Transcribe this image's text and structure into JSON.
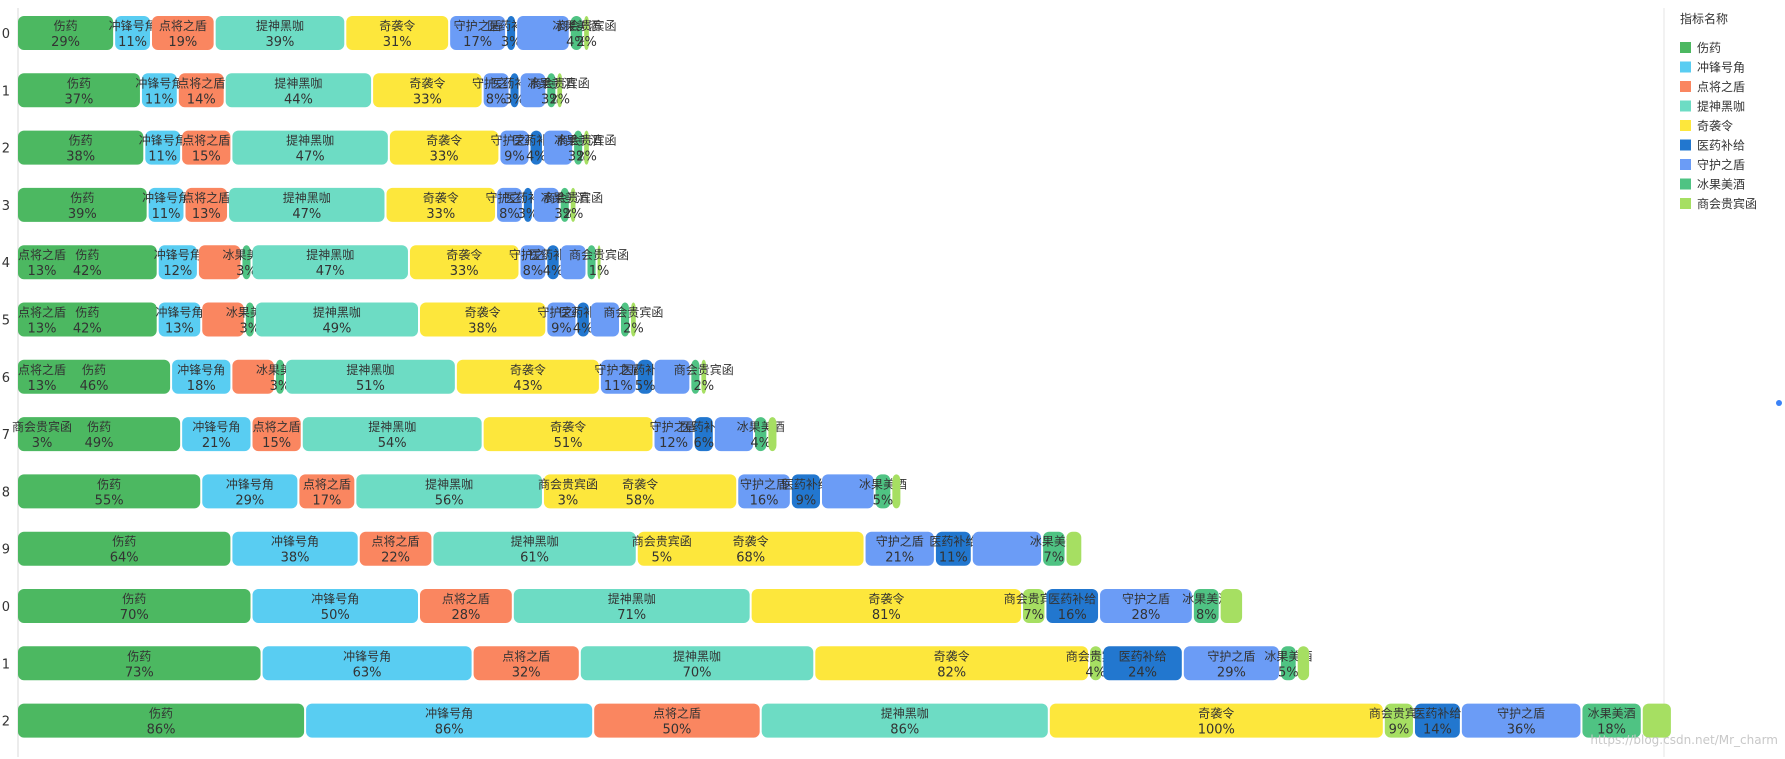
{
  "chart_data": {
    "type": "bar",
    "orientation": "horizontal",
    "stacked": true,
    "title": "",
    "legend": {
      "title": "指标名称",
      "position": "right",
      "items": [
        {
          "name": "伤药",
          "color": "#4cb861"
        },
        {
          "name": "冲锋号角",
          "color": "#59cdf2"
        },
        {
          "name": "点将之盾",
          "color": "#fa8660"
        },
        {
          "name": "提神黑咖",
          "color": "#6ddcc4"
        },
        {
          "name": "奇袭令",
          "color": "#fde73c"
        },
        {
          "name": "医药补给",
          "color": "#2277cf"
        },
        {
          "name": "守护之盾",
          "color": "#6b9cf6"
        },
        {
          "name": "冰果美酒",
          "color": "#4fc383"
        },
        {
          "name": "商会贵宾函",
          "color": "#a6df62"
        }
      ]
    },
    "rows": [
      {
        "label": "0",
        "segments": [
          {
            "series": "伤药",
            "value": 29,
            "label": "29%"
          },
          {
            "series": "冲锋号角",
            "value": 11,
            "label": "11%"
          },
          {
            "series": "点将之盾",
            "value": 19,
            "label": "19%"
          },
          {
            "series": "提神黑咖",
            "value": 39,
            "label": "39%"
          },
          {
            "series": "奇袭令",
            "value": 31,
            "label": "31%"
          },
          {
            "series": "守护之盾",
            "value": 17,
            "label": "17%"
          },
          {
            "series": "医药补给",
            "value": 3,
            "label": "3%"
          },
          {
            "series": "守护之盾",
            "value": 16,
            "label": ""
          },
          {
            "series": "冰果美酒",
            "value": 4,
            "label": "4%"
          },
          {
            "series": "商会贵宾函",
            "value": 2,
            "label": "2%"
          }
        ]
      },
      {
        "label": "1",
        "segments": [
          {
            "series": "伤药",
            "value": 37,
            "label": "37%"
          },
          {
            "series": "冲锋号角",
            "value": 11,
            "label": "11%"
          },
          {
            "series": "点将之盾",
            "value": 14,
            "label": "14%"
          },
          {
            "series": "提神黑咖",
            "value": 44,
            "label": "44%"
          },
          {
            "series": "奇袭令",
            "value": 33,
            "label": "33%"
          },
          {
            "series": "守护之盾",
            "value": 8,
            "label": "8%"
          },
          {
            "series": "医药补给",
            "value": 3,
            "label": "3%"
          },
          {
            "series": "守护之盾",
            "value": 8,
            "label": ""
          },
          {
            "series": "冰果美酒",
            "value": 3,
            "label": "3%"
          },
          {
            "series": "商会贵宾函",
            "value": 2,
            "label": "2%"
          }
        ]
      },
      {
        "label": "2",
        "segments": [
          {
            "series": "伤药",
            "value": 38,
            "label": "38%"
          },
          {
            "series": "冲锋号角",
            "value": 11,
            "label": "11%"
          },
          {
            "series": "点将之盾",
            "value": 15,
            "label": "15%"
          },
          {
            "series": "提神黑咖",
            "value": 47,
            "label": "47%"
          },
          {
            "series": "奇袭令",
            "value": 33,
            "label": "33%"
          },
          {
            "series": "守护之盾",
            "value": 9,
            "label": "9%"
          },
          {
            "series": "医药补给",
            "value": 4,
            "label": "4%"
          },
          {
            "series": "守护之盾",
            "value": 9,
            "label": ""
          },
          {
            "series": "冰果美酒",
            "value": 3,
            "label": "3%"
          },
          {
            "series": "商会贵宾函",
            "value": 2,
            "label": "2%"
          }
        ]
      },
      {
        "label": "3",
        "segments": [
          {
            "series": "伤药",
            "value": 39,
            "label": "39%"
          },
          {
            "series": "冲锋号角",
            "value": 11,
            "label": "11%"
          },
          {
            "series": "点将之盾",
            "value": 13,
            "label": "13%"
          },
          {
            "series": "提神黑咖",
            "value": 47,
            "label": "47%"
          },
          {
            "series": "奇袭令",
            "value": 33,
            "label": "33%"
          },
          {
            "series": "守护之盾",
            "value": 8,
            "label": "8%"
          },
          {
            "series": "医药补给",
            "value": 3,
            "label": "3%"
          },
          {
            "series": "守护之盾",
            "value": 8,
            "label": ""
          },
          {
            "series": "冰果美酒",
            "value": 3,
            "label": "3%"
          },
          {
            "series": "商会贵宾函",
            "value": 2,
            "label": "2%"
          }
        ]
      },
      {
        "label": "4",
        "segments": [
          {
            "series": "伤药",
            "value": 42,
            "label": "42%",
            "extra": "点将之盾",
            "extraLabel": "13%"
          },
          {
            "series": "冲锋号角",
            "value": 12,
            "label": "12%"
          },
          {
            "series": "点将之盾",
            "value": 13,
            "label": ""
          },
          {
            "series": "冰果美酒",
            "value": 3,
            "label": "3%"
          },
          {
            "series": "提神黑咖",
            "value": 47,
            "label": "47%"
          },
          {
            "series": "奇袭令",
            "value": 33,
            "label": "33%"
          },
          {
            "series": "守护之盾",
            "value": 8,
            "label": "8%"
          },
          {
            "series": "医药补给",
            "value": 4,
            "label": "4%"
          },
          {
            "series": "守护之盾",
            "value": 8,
            "label": ""
          },
          {
            "series": "冰果美酒",
            "value": 3,
            "label": ""
          },
          {
            "series": "商会贵宾函",
            "value": 1,
            "label": "1%"
          }
        ]
      },
      {
        "label": "5",
        "segments": [
          {
            "series": "伤药",
            "value": 42,
            "label": "42%",
            "extra": "点将之盾",
            "extraLabel": "13%"
          },
          {
            "series": "冲锋号角",
            "value": 13,
            "label": "13%"
          },
          {
            "series": "点将之盾",
            "value": 13,
            "label": ""
          },
          {
            "series": "冰果美酒",
            "value": 3,
            "label": "3%"
          },
          {
            "series": "提神黑咖",
            "value": 49,
            "label": "49%"
          },
          {
            "series": "奇袭令",
            "value": 38,
            "label": "38%"
          },
          {
            "series": "守护之盾",
            "value": 9,
            "label": "9%"
          },
          {
            "series": "医药补给",
            "value": 4,
            "label": "4%"
          },
          {
            "series": "守护之盾",
            "value": 9,
            "label": ""
          },
          {
            "series": "冰果美酒",
            "value": 3,
            "label": ""
          },
          {
            "series": "商会贵宾函",
            "value": 2,
            "label": "2%"
          }
        ]
      },
      {
        "label": "6",
        "segments": [
          {
            "series": "伤药",
            "value": 46,
            "label": "46%",
            "extra": "点将之盾",
            "extraLabel": "13%"
          },
          {
            "series": "冲锋号角",
            "value": 18,
            "label": "18%"
          },
          {
            "series": "点将之盾",
            "value": 13,
            "label": ""
          },
          {
            "series": "冰果美酒",
            "value": 3,
            "label": "3%"
          },
          {
            "series": "提神黑咖",
            "value": 51,
            "label": "51%"
          },
          {
            "series": "奇袭令",
            "value": 43,
            "label": "43%"
          },
          {
            "series": "守护之盾",
            "value": 11,
            "label": "11%"
          },
          {
            "series": "医药补给",
            "value": 5,
            "label": "5%"
          },
          {
            "series": "守护之盾",
            "value": 11,
            "label": ""
          },
          {
            "series": "冰果美酒",
            "value": 3,
            "label": ""
          },
          {
            "series": "商会贵宾函",
            "value": 2,
            "label": "2%"
          }
        ]
      },
      {
        "label": "7",
        "segments": [
          {
            "series": "伤药",
            "value": 49,
            "label": "49%",
            "extra": "商会贵宾函",
            "extraLabel": "3%"
          },
          {
            "series": "冲锋号角",
            "value": 21,
            "label": "21%"
          },
          {
            "series": "点将之盾",
            "value": 15,
            "label": "15%"
          },
          {
            "series": "提神黑咖",
            "value": 54,
            "label": "54%"
          },
          {
            "series": "奇袭令",
            "value": 51,
            "label": "51%"
          },
          {
            "series": "守护之盾",
            "value": 12,
            "label": "12%"
          },
          {
            "series": "医药补给",
            "value": 6,
            "label": "6%"
          },
          {
            "series": "守护之盾",
            "value": 12,
            "label": ""
          },
          {
            "series": "冰果美酒",
            "value": 4,
            "label": "4%"
          },
          {
            "series": "商会贵宾函",
            "value": 3,
            "label": ""
          }
        ]
      },
      {
        "label": "8",
        "segments": [
          {
            "series": "伤药",
            "value": 55,
            "label": "55%"
          },
          {
            "series": "冲锋号角",
            "value": 29,
            "label": "29%"
          },
          {
            "series": "点将之盾",
            "value": 17,
            "label": "17%"
          },
          {
            "series": "提神黑咖",
            "value": 56,
            "label": "56%"
          },
          {
            "series": "奇袭令",
            "value": 58,
            "label": "58%",
            "extra": "商会贵宾函",
            "extraLabel": "3%"
          },
          {
            "series": "守护之盾",
            "value": 16,
            "label": "16%"
          },
          {
            "series": "医药补给",
            "value": 9,
            "label": "9%"
          },
          {
            "series": "守护之盾",
            "value": 16,
            "label": ""
          },
          {
            "series": "冰果美酒",
            "value": 5,
            "label": "5%"
          },
          {
            "series": "商会贵宾函",
            "value": 3,
            "label": ""
          }
        ]
      },
      {
        "label": "9",
        "segments": [
          {
            "series": "伤药",
            "value": 64,
            "label": "64%"
          },
          {
            "series": "冲锋号角",
            "value": 38,
            "label": "38%"
          },
          {
            "series": "点将之盾",
            "value": 22,
            "label": "22%"
          },
          {
            "series": "提神黑咖",
            "value": 61,
            "label": "61%"
          },
          {
            "series": "奇袭令",
            "value": 68,
            "label": "68%",
            "extra": "商会贵宾函",
            "extraLabel": "5%"
          },
          {
            "series": "守护之盾",
            "value": 21,
            "label": "21%"
          },
          {
            "series": "医药补给",
            "value": 11,
            "label": "11%"
          },
          {
            "series": "守护之盾",
            "value": 21,
            "label": ""
          },
          {
            "series": "冰果美酒",
            "value": 7,
            "label": "7%"
          },
          {
            "series": "商会贵宾函",
            "value": 5,
            "label": ""
          }
        ]
      },
      {
        "label": "0",
        "segments": [
          {
            "series": "伤药",
            "value": 70,
            "label": "70%"
          },
          {
            "series": "冲锋号角",
            "value": 50,
            "label": "50%"
          },
          {
            "series": "点将之盾",
            "value": 28,
            "label": "28%"
          },
          {
            "series": "提神黑咖",
            "value": 71,
            "label": "71%"
          },
          {
            "series": "奇袭令",
            "value": 81,
            "label": "81%"
          },
          {
            "series": "商会贵宾函",
            "value": 7,
            "label": "7%"
          },
          {
            "series": "医药补给",
            "value": 16,
            "label": "16%"
          },
          {
            "series": "守护之盾",
            "value": 28,
            "label": "28%"
          },
          {
            "series": "冰果美酒",
            "value": 8,
            "label": "8%"
          },
          {
            "series": "商会贵宾函",
            "value": 7,
            "label": ""
          }
        ]
      },
      {
        "label": "1",
        "segments": [
          {
            "series": "伤药",
            "value": 73,
            "label": "73%"
          },
          {
            "series": "冲锋号角",
            "value": 63,
            "label": "63%"
          },
          {
            "series": "点将之盾",
            "value": 32,
            "label": "32%"
          },
          {
            "series": "提神黑咖",
            "value": 70,
            "label": "70%"
          },
          {
            "series": "奇袭令",
            "value": 82,
            "label": "82%"
          },
          {
            "series": "商会贵宾函",
            "value": 4,
            "label": "4%"
          },
          {
            "series": "医药补给",
            "value": 24,
            "label": "24%"
          },
          {
            "series": "守护之盾",
            "value": 29,
            "label": "29%"
          },
          {
            "series": "冰果美酒",
            "value": 5,
            "label": "5%"
          },
          {
            "series": "商会贵宾函",
            "value": 4,
            "label": ""
          }
        ]
      },
      {
        "label": "2",
        "segments": [
          {
            "series": "伤药",
            "value": 86,
            "label": "86%"
          },
          {
            "series": "冲锋号角",
            "value": 86,
            "label": "86%"
          },
          {
            "series": "点将之盾",
            "value": 50,
            "label": "50%"
          },
          {
            "series": "提神黑咖",
            "value": 86,
            "label": "86%"
          },
          {
            "series": "奇袭令",
            "value": 100,
            "label": "100%"
          },
          {
            "series": "商会贵宾函",
            "value": 9,
            "label": "9%"
          },
          {
            "series": "医药补给",
            "value": 14,
            "label": "14%"
          },
          {
            "series": "守护之盾",
            "value": 36,
            "label": "36%"
          },
          {
            "series": "冰果美酒",
            "value": 18,
            "label": "18%"
          },
          {
            "series": "商会贵宾函",
            "value": 9,
            "label": ""
          }
        ]
      }
    ]
  },
  "watermark": "https://blog.csdn.net/Mr_charm"
}
